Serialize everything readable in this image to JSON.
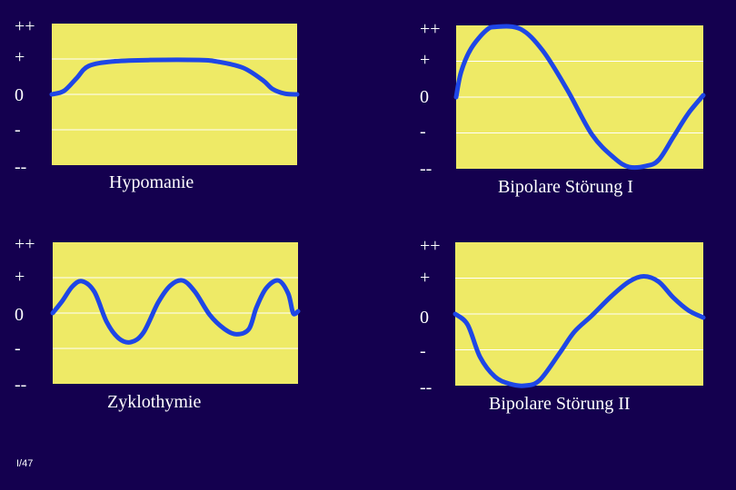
{
  "level_labels": [
    "++",
    "+",
    "0",
    "-",
    "--"
  ],
  "colors": {
    "background": "#14004f",
    "plot": "#eeea66",
    "curve": "#1e46e6",
    "gridline": "#ffffff"
  },
  "panels": [
    {
      "id": "hypomanie",
      "title": "Hypomanie",
      "curve": [
        [
          0,
          0
        ],
        [
          0.05,
          0.1
        ],
        [
          0.1,
          0.45
        ],
        [
          0.15,
          0.8
        ],
        [
          0.25,
          0.93
        ],
        [
          0.4,
          0.97
        ],
        [
          0.6,
          0.97
        ],
        [
          0.68,
          0.92
        ],
        [
          0.78,
          0.75
        ],
        [
          0.86,
          0.4
        ],
        [
          0.9,
          0.15
        ],
        [
          0.95,
          0.02
        ],
        [
          1,
          0
        ]
      ]
    },
    {
      "id": "bipolar-1",
      "title": "Bipolare Störung I",
      "curve": [
        [
          0,
          0
        ],
        [
          0.02,
          0.7
        ],
        [
          0.06,
          1.35
        ],
        [
          0.12,
          1.85
        ],
        [
          0.16,
          1.96
        ],
        [
          0.26,
          1.9
        ],
        [
          0.35,
          1.3
        ],
        [
          0.45,
          0.2
        ],
        [
          0.55,
          -1.05
        ],
        [
          0.64,
          -1.7
        ],
        [
          0.7,
          -1.95
        ],
        [
          0.77,
          -1.92
        ],
        [
          0.82,
          -1.75
        ],
        [
          0.88,
          -1.1
        ],
        [
          0.94,
          -0.45
        ],
        [
          1,
          0.05
        ]
      ]
    },
    {
      "id": "zyklothymie",
      "title": "Zyklothymie",
      "curve": [
        [
          0,
          0
        ],
        [
          0.04,
          0.35
        ],
        [
          0.08,
          0.75
        ],
        [
          0.12,
          0.9
        ],
        [
          0.17,
          0.6
        ],
        [
          0.22,
          -0.25
        ],
        [
          0.27,
          -0.72
        ],
        [
          0.32,
          -0.82
        ],
        [
          0.37,
          -0.55
        ],
        [
          0.43,
          0.3
        ],
        [
          0.48,
          0.78
        ],
        [
          0.53,
          0.92
        ],
        [
          0.58,
          0.6
        ],
        [
          0.64,
          -0.05
        ],
        [
          0.7,
          -0.45
        ],
        [
          0.75,
          -0.6
        ],
        [
          0.8,
          -0.45
        ],
        [
          0.83,
          0.15
        ],
        [
          0.87,
          0.7
        ],
        [
          0.92,
          0.92
        ],
        [
          0.96,
          0.55
        ],
        [
          0.98,
          0.0
        ],
        [
          1,
          0.05
        ]
      ]
    },
    {
      "id": "bipolar-2",
      "title": "Bipolare Störung II",
      "curve": [
        [
          0,
          0
        ],
        [
          0.05,
          -0.3
        ],
        [
          0.1,
          -1.2
        ],
        [
          0.16,
          -1.75
        ],
        [
          0.22,
          -1.95
        ],
        [
          0.28,
          -2.0
        ],
        [
          0.34,
          -1.85
        ],
        [
          0.42,
          -1.1
        ],
        [
          0.48,
          -0.5
        ],
        [
          0.55,
          -0.05
        ],
        [
          0.63,
          0.5
        ],
        [
          0.7,
          0.9
        ],
        [
          0.76,
          1.05
        ],
        [
          0.82,
          0.9
        ],
        [
          0.88,
          0.45
        ],
        [
          0.94,
          0.1
        ],
        [
          1,
          -0.1
        ]
      ]
    }
  ],
  "page_number": "I/47"
}
